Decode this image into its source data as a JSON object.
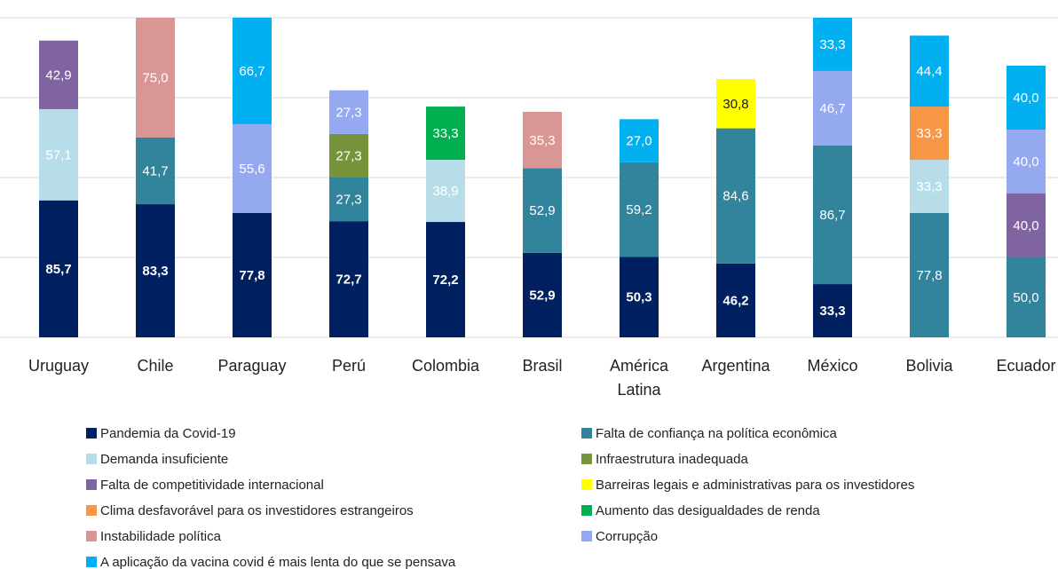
{
  "chart_data": {
    "type": "stacked_bar",
    "categories": [
      "Uruguay",
      "Chile",
      "Paraguay",
      "Perú",
      "Colombia",
      "Brasil",
      "América Latina",
      "Argentina",
      "México",
      "Bolivia",
      "Ecuador"
    ],
    "ylim": [
      0,
      200
    ],
    "yticks": [
      0,
      50,
      100,
      150,
      200
    ],
    "grid": true,
    "series": [
      {
        "name": "Pandemia da Covid-19",
        "color": "#002060",
        "values": [
          85.7,
          83.3,
          77.8,
          72.7,
          72.2,
          52.9,
          50.3,
          46.2,
          33.3,
          null,
          null
        ],
        "value_labels": [
          "85,7",
          "83,3",
          "77,8",
          "72,7",
          "72,2",
          "52,9",
          "50,3",
          "46,2",
          "33,3",
          null,
          null
        ]
      },
      {
        "name": "Falta de confiança na política econômica",
        "color": "#31849B",
        "values": [
          null,
          41.7,
          null,
          27.3,
          null,
          52.9,
          59.2,
          84.6,
          86.7,
          77.8,
          50.0
        ],
        "value_labels": [
          null,
          "41,7",
          null,
          "27,3",
          null,
          "52,9",
          "59,2",
          "84,6",
          "86,7",
          "77,8",
          "50,0"
        ]
      },
      {
        "name": "Demanda insuficiente",
        "color": "#B7DEE8",
        "values": [
          57.1,
          null,
          null,
          null,
          38.9,
          null,
          null,
          null,
          null,
          33.3,
          null
        ],
        "value_labels": [
          "57,1",
          null,
          null,
          null,
          "38,9",
          null,
          null,
          null,
          null,
          "33,3",
          null
        ]
      },
      {
        "name": "Infraestrutura inadequada",
        "color": "#77933C",
        "values": [
          null,
          null,
          null,
          27.3,
          null,
          null,
          null,
          null,
          null,
          null,
          null
        ],
        "value_labels": [
          null,
          null,
          null,
          "27,3",
          null,
          null,
          null,
          null,
          null,
          null,
          null
        ]
      },
      {
        "name": "Falta de competitividade internacional",
        "color": "#8064A2",
        "values": [
          42.9,
          null,
          null,
          null,
          null,
          null,
          null,
          null,
          null,
          null,
          40.0
        ],
        "value_labels": [
          "42,9",
          null,
          null,
          null,
          null,
          null,
          null,
          null,
          null,
          null,
          "40,0"
        ]
      },
      {
        "name": "Barreiras legais e administrativas para os investidores",
        "color": "#FFFF00",
        "values": [
          null,
          null,
          null,
          null,
          null,
          null,
          null,
          30.8,
          null,
          null,
          null
        ],
        "value_labels": [
          null,
          null,
          null,
          null,
          null,
          null,
          null,
          "30,8",
          null,
          null,
          null
        ]
      },
      {
        "name": "Clima desfavorável para os investidores estrangeiros",
        "color": "#F79646",
        "values": [
          null,
          null,
          null,
          null,
          null,
          null,
          null,
          null,
          null,
          33.3,
          null
        ],
        "value_labels": [
          null,
          null,
          null,
          null,
          null,
          null,
          null,
          null,
          null,
          "33,3",
          null
        ]
      },
      {
        "name": "Aumento das desigualdades de renda",
        "color": "#00B050",
        "values": [
          null,
          null,
          null,
          null,
          33.3,
          null,
          null,
          null,
          null,
          null,
          null
        ],
        "value_labels": [
          null,
          null,
          null,
          null,
          "33,3",
          null,
          null,
          null,
          null,
          null,
          null
        ]
      },
      {
        "name": "Instabilidade política",
        "color": "#DA9694",
        "values": [
          null,
          75.0,
          null,
          null,
          null,
          35.3,
          null,
          null,
          null,
          null,
          null
        ],
        "value_labels": [
          null,
          "75,0",
          null,
          null,
          null,
          "35,3",
          null,
          null,
          null,
          null,
          null
        ]
      },
      {
        "name": "Corrupção",
        "color": "#95A9F0",
        "values": [
          null,
          null,
          55.6,
          27.3,
          null,
          null,
          null,
          null,
          46.7,
          null,
          40.0
        ],
        "value_labels": [
          null,
          null,
          "55,6",
          "27,3",
          null,
          null,
          null,
          null,
          "46,7",
          null,
          "40,0"
        ]
      },
      {
        "name": "A aplicação da vacina covid  é mais lenta do que se pensava",
        "color": "#00B0F0",
        "values": [
          null,
          null,
          66.7,
          null,
          null,
          null,
          27.0,
          null,
          33.3,
          44.4,
          40.0
        ],
        "value_labels": [
          null,
          null,
          "66,7",
          null,
          null,
          null,
          "27,0",
          null,
          "33,3",
          "44,4",
          "40,0"
        ]
      }
    ]
  }
}
